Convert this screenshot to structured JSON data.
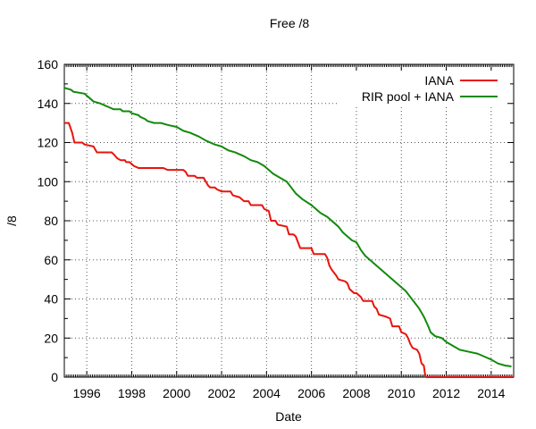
{
  "chart_data": {
    "type": "line",
    "title": "Free /8",
    "xlabel": "Date",
    "ylabel": "/8",
    "xlim": [
      1995.0,
      2015.0
    ],
    "ylim": [
      0,
      160
    ],
    "grid": true,
    "legend_position": "top-right",
    "x_ticks": [
      1996,
      1998,
      2000,
      2002,
      2004,
      2006,
      2008,
      2010,
      2012,
      2014
    ],
    "y_ticks": [
      0,
      20,
      40,
      60,
      80,
      100,
      120,
      140,
      160
    ],
    "series": [
      {
        "name": "IANA",
        "color": "#e8140c",
        "points": [
          [
            1995.0,
            130
          ],
          [
            1995.2,
            130
          ],
          [
            1995.35,
            125
          ],
          [
            1995.45,
            120
          ],
          [
            1995.8,
            120
          ],
          [
            1995.9,
            119
          ],
          [
            1996.3,
            118
          ],
          [
            1996.45,
            115
          ],
          [
            1997.1,
            115
          ],
          [
            1997.2,
            114
          ],
          [
            1997.35,
            112
          ],
          [
            1997.5,
            111
          ],
          [
            1997.7,
            111
          ],
          [
            1997.75,
            110
          ],
          [
            1997.9,
            110
          ],
          [
            1998.0,
            109
          ],
          [
            1998.1,
            108
          ],
          [
            1998.3,
            107
          ],
          [
            1999.0,
            107
          ],
          [
            1999.4,
            107
          ],
          [
            1999.6,
            106
          ],
          [
            2000.3,
            106
          ],
          [
            2000.4,
            105
          ],
          [
            2000.5,
            103
          ],
          [
            2000.8,
            103
          ],
          [
            2000.9,
            102
          ],
          [
            2001.2,
            102
          ],
          [
            2001.3,
            100
          ],
          [
            2001.4,
            98
          ],
          [
            2001.5,
            97
          ],
          [
            2001.7,
            97
          ],
          [
            2001.8,
            96
          ],
          [
            2002.0,
            95
          ],
          [
            2002.3,
            95
          ],
          [
            2002.4,
            95
          ],
          [
            2002.5,
            93
          ],
          [
            2002.8,
            92
          ],
          [
            2003.0,
            90
          ],
          [
            2003.2,
            90
          ],
          [
            2003.3,
            88
          ],
          [
            2003.8,
            88
          ],
          [
            2003.9,
            86
          ],
          [
            2004.1,
            85
          ],
          [
            2004.2,
            80
          ],
          [
            2004.4,
            80
          ],
          [
            2004.5,
            78
          ],
          [
            2004.9,
            77
          ],
          [
            2005.0,
            73
          ],
          [
            2005.2,
            73
          ],
          [
            2005.3,
            72
          ],
          [
            2005.5,
            66
          ],
          [
            2006.0,
            66
          ],
          [
            2006.1,
            63
          ],
          [
            2006.6,
            63
          ],
          [
            2006.7,
            61
          ],
          [
            2006.8,
            57
          ],
          [
            2006.9,
            55
          ],
          [
            2007.1,
            52
          ],
          [
            2007.2,
            50
          ],
          [
            2007.5,
            49
          ],
          [
            2007.6,
            48
          ],
          [
            2007.7,
            45
          ],
          [
            2007.9,
            43
          ],
          [
            2008.0,
            43
          ],
          [
            2008.1,
            42
          ],
          [
            2008.2,
            41
          ],
          [
            2008.3,
            39
          ],
          [
            2008.7,
            39
          ],
          [
            2008.8,
            36
          ],
          [
            2008.9,
            35
          ],
          [
            2009.0,
            32
          ],
          [
            2009.3,
            31
          ],
          [
            2009.5,
            30
          ],
          [
            2009.6,
            26
          ],
          [
            2009.9,
            26
          ],
          [
            2010.0,
            23
          ],
          [
            2010.2,
            22
          ],
          [
            2010.3,
            20
          ],
          [
            2010.4,
            17
          ],
          [
            2010.5,
            15
          ],
          [
            2010.7,
            14
          ],
          [
            2010.8,
            12
          ],
          [
            2010.9,
            7
          ],
          [
            2011.0,
            6
          ],
          [
            2011.05,
            2
          ],
          [
            2011.1,
            0
          ],
          [
            2015.0,
            0
          ]
        ]
      },
      {
        "name": "RIR pool + IANA",
        "color": "#138a0c",
        "points": [
          [
            1995.0,
            148
          ],
          [
            1995.3,
            147
          ],
          [
            1995.4,
            146
          ],
          [
            1995.9,
            145
          ],
          [
            1996.0,
            144
          ],
          [
            1996.1,
            143
          ],
          [
            1996.3,
            141
          ],
          [
            1996.6,
            140
          ],
          [
            1996.8,
            139
          ],
          [
            1997.0,
            138
          ],
          [
            1997.2,
            137
          ],
          [
            1997.5,
            137
          ],
          [
            1997.6,
            136
          ],
          [
            1997.9,
            136
          ],
          [
            1998.0,
            135
          ],
          [
            1998.3,
            134
          ],
          [
            1998.4,
            133
          ],
          [
            1998.6,
            132
          ],
          [
            1998.7,
            131
          ],
          [
            1999.0,
            130
          ],
          [
            1999.3,
            130
          ],
          [
            1999.6,
            129
          ],
          [
            2000.0,
            128
          ],
          [
            2000.3,
            126
          ],
          [
            2000.6,
            125
          ],
          [
            2001.0,
            123
          ],
          [
            2001.3,
            121
          ],
          [
            2001.7,
            119
          ],
          [
            2002.0,
            118
          ],
          [
            2002.3,
            116
          ],
          [
            2002.6,
            115
          ],
          [
            2003.0,
            113
          ],
          [
            2003.3,
            111
          ],
          [
            2003.6,
            110
          ],
          [
            2003.9,
            108
          ],
          [
            2004.1,
            106
          ],
          [
            2004.3,
            104
          ],
          [
            2004.6,
            102
          ],
          [
            2004.9,
            100
          ],
          [
            2005.1,
            97
          ],
          [
            2005.3,
            94
          ],
          [
            2005.6,
            91
          ],
          [
            2006.0,
            88
          ],
          [
            2006.2,
            86
          ],
          [
            2006.4,
            84
          ],
          [
            2006.7,
            82
          ],
          [
            2007.0,
            79
          ],
          [
            2007.2,
            77
          ],
          [
            2007.4,
            74
          ],
          [
            2007.6,
            72
          ],
          [
            2007.8,
            70
          ],
          [
            2008.0,
            69
          ],
          [
            2008.2,
            65
          ],
          [
            2008.4,
            62
          ],
          [
            2008.6,
            60
          ],
          [
            2008.8,
            58
          ],
          [
            2009.0,
            56
          ],
          [
            2009.2,
            54
          ],
          [
            2009.4,
            52
          ],
          [
            2009.6,
            50
          ],
          [
            2009.8,
            48
          ],
          [
            2010.0,
            46
          ],
          [
            2010.2,
            44
          ],
          [
            2010.4,
            41
          ],
          [
            2010.6,
            38
          ],
          [
            2010.8,
            35
          ],
          [
            2011.0,
            31
          ],
          [
            2011.2,
            26
          ],
          [
            2011.3,
            23
          ],
          [
            2011.5,
            21
          ],
          [
            2011.8,
            20
          ],
          [
            2012.0,
            18
          ],
          [
            2012.3,
            16
          ],
          [
            2012.6,
            14
          ],
          [
            2013.0,
            13
          ],
          [
            2013.4,
            12
          ],
          [
            2013.8,
            10
          ],
          [
            2014.0,
            9
          ],
          [
            2014.3,
            7
          ],
          [
            2014.6,
            6
          ],
          [
            2014.9,
            5.5
          ]
        ]
      }
    ]
  }
}
